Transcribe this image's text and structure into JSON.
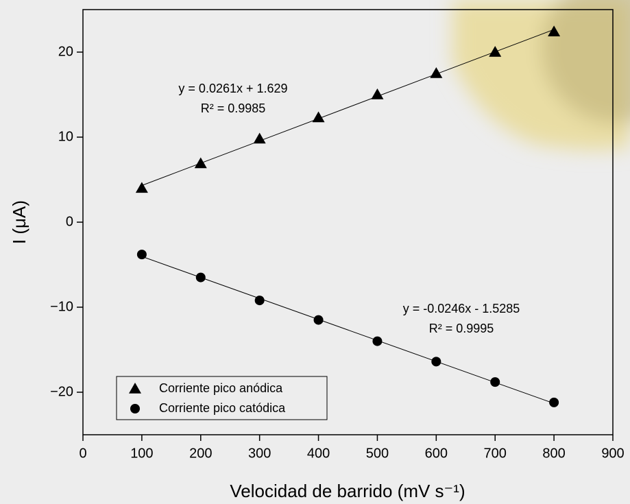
{
  "chart_data": {
    "type": "scatter",
    "xlabel": "Velocidad de barrido (mV s⁻¹)",
    "ylabel": "I (μA)",
    "x": [
      100,
      200,
      300,
      400,
      500,
      600,
      700,
      800
    ],
    "series": [
      {
        "name": "Corriente pico anódica",
        "color": "#000000",
        "marker": "triangle",
        "values": [
          4.0,
          6.9,
          9.8,
          12.3,
          15.0,
          17.5,
          20.0,
          22.4
        ],
        "annotation": [
          "y = 0.0261x + 1.629",
          "R² = 0.9985"
        ]
      },
      {
        "name": "Corriente pico catódica",
        "color": "#000000",
        "marker": "circle",
        "values": [
          -3.8,
          -6.5,
          -9.2,
          -11.5,
          -14.0,
          -16.4,
          -18.8,
          -21.2
        ],
        "annotation": [
          "y = -0.0246x - 1.5285",
          "R² = 0.9995"
        ]
      }
    ],
    "xlim": [
      0,
      900
    ],
    "xticks": [
      0,
      100,
      200,
      300,
      400,
      500,
      600,
      700,
      800,
      900
    ],
    "ylim": [
      -25,
      25
    ],
    "yticks": [
      {
        "value": -20,
        "label": "−20"
      },
      {
        "value": -10,
        "label": "−10"
      },
      0,
      10,
      20
    ],
    "trendline": true,
    "legend": "lower left"
  }
}
